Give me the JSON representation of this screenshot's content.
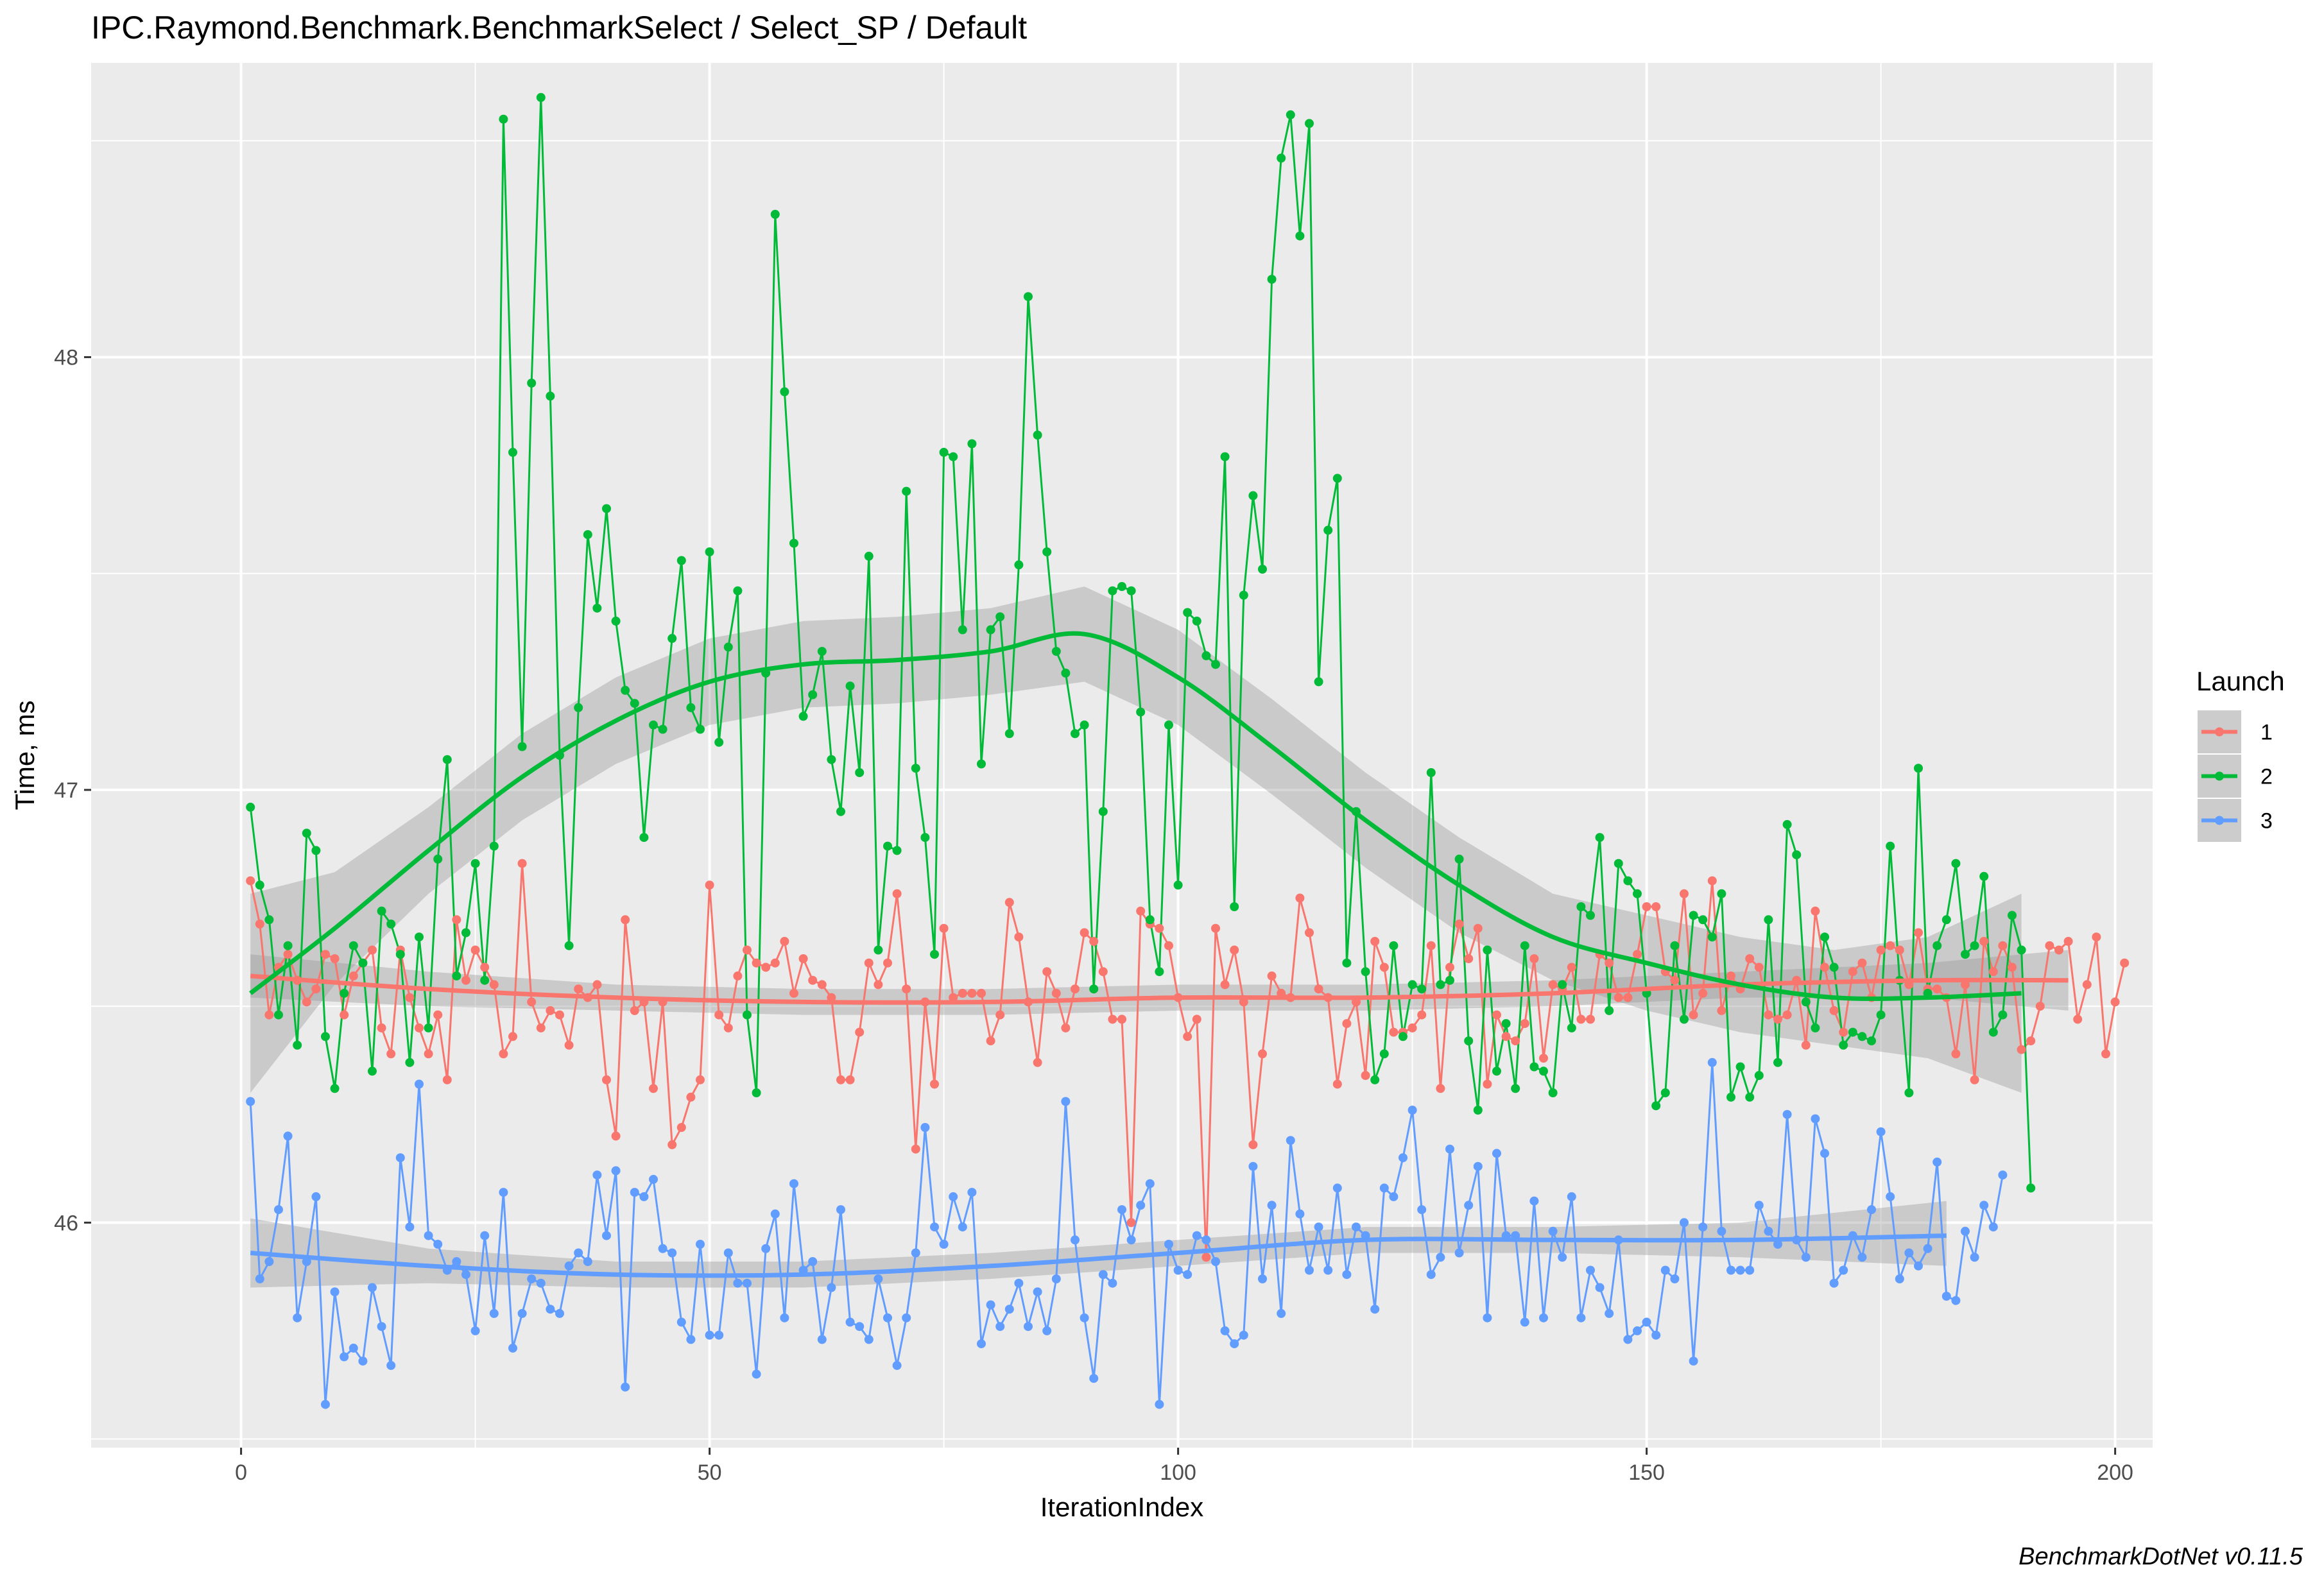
{
  "chart_data": {
    "type": "line",
    "title": "IPC.Raymond.Benchmark.BenchmarkSelect / Select_SP / Default",
    "xlabel": "IterationIndex",
    "ylabel": "Time, ms",
    "caption": "BenchmarkDotNet v0.11.5",
    "xlim": [
      -16,
      204
    ],
    "ylim": [
      45.48,
      48.68
    ],
    "x_major_ticks": [
      0,
      50,
      100,
      150,
      200
    ],
    "x_tick_labels": [
      "0",
      "50",
      "100",
      "150",
      "200"
    ],
    "x_minor_ticks": [
      25,
      75,
      125,
      175
    ],
    "y_major_ticks": [
      46,
      47,
      48
    ],
    "y_tick_labels": [
      "46",
      "47",
      "48"
    ],
    "y_minor_ticks": [
      45.5,
      46.5,
      47.5,
      48.5
    ],
    "grid": true,
    "legend": {
      "title": "Launch",
      "position": "right"
    },
    "series": [
      {
        "name": "1",
        "color": "#F8766D",
        "values": [
          46.79,
          46.69,
          46.48,
          46.59,
          46.62,
          46.56,
          46.51,
          46.54,
          46.62,
          46.61,
          46.48,
          46.57,
          46.6,
          46.63,
          46.45,
          46.39,
          46.63,
          46.52,
          46.45,
          46.39,
          46.48,
          46.33,
          46.7,
          46.56,
          46.63,
          46.59,
          46.55,
          46.39,
          46.43,
          46.83,
          46.51,
          46.45,
          46.49,
          46.48,
          46.41,
          46.54,
          46.52,
          46.55,
          46.33,
          46.2,
          46.7,
          46.49,
          46.51,
          46.31,
          46.51,
          46.18,
          46.22,
          46.29,
          46.33,
          46.78,
          46.48,
          46.45,
          46.57,
          46.63,
          46.6,
          46.59,
          46.6,
          46.65,
          46.53,
          46.61,
          46.56,
          46.55,
          46.52,
          46.33,
          46.33,
          46.44,
          46.6,
          46.55,
          46.6,
          46.76,
          46.54,
          46.17,
          46.51,
          46.32,
          46.68,
          46.52,
          46.53,
          46.53,
          46.53,
          46.42,
          46.48,
          46.74,
          46.66,
          46.51,
          46.37,
          46.58,
          46.53,
          46.45,
          46.54,
          46.67,
          46.65,
          46.58,
          46.47,
          46.47,
          46.0,
          46.72,
          46.69,
          46.68,
          46.64,
          46.52,
          46.43,
          46.47,
          45.92,
          46.68,
          46.55,
          46.63,
          46.51,
          46.18,
          46.39,
          46.57,
          46.53,
          46.52,
          46.75,
          46.67,
          46.54,
          46.52,
          46.32,
          46.46,
          46.51,
          46.34,
          46.65,
          46.59,
          46.44,
          46.44,
          46.45,
          46.48,
          46.64,
          46.31,
          46.59,
          46.69,
          46.61,
          46.68,
          46.32,
          46.48,
          46.43,
          46.42,
          46.46,
          46.61,
          46.38,
          46.55,
          46.54,
          46.59,
          46.47,
          46.47,
          46.62,
          46.6,
          46.52,
          46.52,
          46.62,
          46.73,
          46.73,
          46.58,
          46.56,
          46.76,
          46.48,
          46.53,
          46.79,
          46.49,
          46.57,
          46.54,
          46.61,
          46.59,
          46.48,
          46.47,
          46.48,
          46.56,
          46.41,
          46.72,
          46.59,
          46.49,
          46.44,
          46.58,
          46.6,
          46.52,
          46.63,
          46.64,
          46.63,
          46.55,
          46.67,
          46.54,
          46.54,
          46.52,
          46.39,
          46.55,
          46.33,
          46.65,
          46.58,
          46.64,
          46.59,
          46.4,
          46.42,
          46.5,
          46.64,
          46.63,
          46.65,
          46.47,
          46.55,
          46.66,
          46.39,
          46.51,
          46.6
        ],
        "trend": [
          [
            1,
            46.57
          ],
          [
            20,
            46.54
          ],
          [
            40,
            46.52
          ],
          [
            60,
            46.51
          ],
          [
            80,
            46.51
          ],
          [
            100,
            46.52
          ],
          [
            120,
            46.52
          ],
          [
            140,
            46.53
          ],
          [
            160,
            46.55
          ],
          [
            180,
            46.56
          ],
          [
            195,
            46.56
          ]
        ],
        "band": [
          [
            1,
            46.52,
            46.62
          ],
          [
            20,
            46.5,
            46.58
          ],
          [
            40,
            46.49,
            46.55
          ],
          [
            60,
            46.48,
            46.54
          ],
          [
            80,
            46.48,
            46.54
          ],
          [
            100,
            46.49,
            46.55
          ],
          [
            120,
            46.49,
            46.55
          ],
          [
            140,
            46.5,
            46.56
          ],
          [
            160,
            46.52,
            46.58
          ],
          [
            180,
            46.52,
            46.6
          ],
          [
            195,
            46.49,
            46.63
          ]
        ]
      },
      {
        "name": "2",
        "color": "#00BA38",
        "values": [
          46.96,
          46.78,
          46.7,
          46.48,
          46.64,
          46.41,
          46.9,
          46.86,
          46.43,
          46.31,
          46.53,
          46.64,
          46.6,
          46.35,
          46.72,
          46.69,
          46.62,
          46.37,
          46.66,
          46.45,
          46.84,
          47.07,
          46.57,
          46.67,
          46.83,
          46.56,
          46.87,
          48.55,
          47.78,
          47.1,
          47.94,
          48.6,
          47.91,
          47.08,
          46.64,
          47.19,
          47.59,
          47.42,
          47.65,
          47.39,
          47.23,
          47.2,
          46.89,
          47.15,
          47.14,
          47.35,
          47.53,
          47.19,
          47.14,
          47.55,
          47.11,
          47.33,
          47.46,
          46.48,
          46.3,
          47.27,
          48.33,
          47.92,
          47.57,
          47.17,
          47.22,
          47.32,
          47.07,
          46.95,
          47.24,
          47.04,
          47.54,
          46.63,
          46.87,
          46.86,
          47.69,
          47.05,
          46.89,
          46.62,
          47.78,
          47.77,
          47.37,
          47.8,
          47.06,
          47.37,
          47.4,
          47.13,
          47.52,
          48.14,
          47.82,
          47.55,
          47.32,
          47.27,
          47.13,
          47.15,
          46.54,
          46.95,
          47.46,
          47.47,
          47.46,
          47.18,
          46.7,
          46.58,
          47.15,
          46.78,
          47.41,
          47.39,
          47.31,
          47.29,
          47.77,
          46.73,
          47.45,
          47.68,
          47.51,
          48.18,
          48.46,
          48.56,
          48.28,
          48.54,
          47.25,
          47.6,
          47.72,
          46.6,
          46.95,
          46.58,
          46.33,
          46.39,
          46.64,
          46.43,
          46.55,
          46.54,
          47.04,
          46.55,
          46.56,
          46.84,
          46.42,
          46.26,
          46.63,
          46.35,
          46.46,
          46.31,
          46.64,
          46.36,
          46.35,
          46.3,
          46.55,
          46.45,
          46.73,
          46.71,
          46.89,
          46.49,
          46.83,
          46.79,
          46.76,
          46.53,
          46.27,
          46.3,
          46.64,
          46.47,
          46.71,
          46.7,
          46.66,
          46.76,
          46.29,
          46.36,
          46.29,
          46.34,
          46.7,
          46.37,
          46.92,
          46.85,
          46.51,
          46.45,
          46.66,
          46.59,
          46.41,
          46.44,
          46.43,
          46.42,
          46.48,
          46.87,
          46.56,
          46.3,
          47.05,
          46.53,
          46.64,
          46.7,
          46.83,
          46.62,
          46.64,
          46.8,
          46.44,
          46.48,
          46.71,
          46.63,
          46.08
        ],
        "trend": [
          [
            1,
            46.53
          ],
          [
            10,
            46.68
          ],
          [
            20,
            46.86
          ],
          [
            30,
            47.03
          ],
          [
            40,
            47.16
          ],
          [
            50,
            47.25
          ],
          [
            60,
            47.29
          ],
          [
            70,
            47.3
          ],
          [
            80,
            47.32
          ],
          [
            90,
            47.36
          ],
          [
            100,
            47.26
          ],
          [
            110,
            47.1
          ],
          [
            120,
            46.93
          ],
          [
            130,
            46.78
          ],
          [
            140,
            46.66
          ],
          [
            150,
            46.6
          ],
          [
            160,
            46.55
          ],
          [
            170,
            46.52
          ],
          [
            180,
            46.52
          ],
          [
            190,
            46.53
          ]
        ],
        "band": [
          [
            1,
            46.3,
            46.76
          ],
          [
            10,
            46.55,
            46.81
          ],
          [
            20,
            46.76,
            46.96
          ],
          [
            30,
            46.93,
            47.13
          ],
          [
            40,
            47.06,
            47.26
          ],
          [
            50,
            47.15,
            47.35
          ],
          [
            60,
            47.19,
            47.39
          ],
          [
            70,
            47.2,
            47.4
          ],
          [
            80,
            47.22,
            47.42
          ],
          [
            90,
            47.25,
            47.47
          ],
          [
            100,
            47.15,
            47.37
          ],
          [
            110,
            46.99,
            47.21
          ],
          [
            120,
            46.82,
            47.04
          ],
          [
            130,
            46.67,
            46.89
          ],
          [
            140,
            46.56,
            46.76
          ],
          [
            150,
            46.49,
            46.71
          ],
          [
            160,
            46.44,
            46.66
          ],
          [
            170,
            46.41,
            46.63
          ],
          [
            180,
            46.38,
            46.66
          ],
          [
            190,
            46.3,
            46.76
          ]
        ]
      },
      {
        "name": "3",
        "color": "#619CFF",
        "values": [
          46.28,
          45.87,
          45.91,
          46.03,
          46.2,
          45.78,
          45.91,
          46.06,
          45.58,
          45.84,
          45.69,
          45.71,
          45.68,
          45.85,
          45.76,
          45.67,
          46.15,
          45.99,
          46.32,
          45.97,
          45.95,
          45.89,
          45.91,
          45.88,
          45.75,
          45.97,
          45.79,
          46.07,
          45.71,
          45.79,
          45.87,
          45.86,
          45.8,
          45.79,
          45.9,
          45.93,
          45.91,
          46.11,
          45.97,
          46.12,
          45.62,
          46.07,
          46.06,
          46.1,
          45.94,
          45.93,
          45.77,
          45.73,
          45.95,
          45.74,
          45.74,
          45.93,
          45.86,
          45.86,
          45.65,
          45.94,
          46.02,
          45.78,
          46.09,
          45.89,
          45.91,
          45.73,
          45.85,
          46.03,
          45.77,
          45.76,
          45.73,
          45.87,
          45.78,
          45.67,
          45.78,
          45.93,
          46.22,
          45.99,
          45.95,
          46.06,
          45.99,
          46.07,
          45.72,
          45.81,
          45.76,
          45.8,
          45.86,
          45.76,
          45.84,
          45.75,
          45.87,
          46.28,
          45.96,
          45.78,
          45.64,
          45.88,
          45.86,
          46.03,
          45.96,
          46.04,
          46.09,
          45.58,
          45.95,
          45.89,
          45.88,
          45.97,
          45.96,
          45.91,
          45.75,
          45.72,
          45.74,
          46.13,
          45.87,
          46.04,
          45.79,
          46.19,
          46.02,
          45.89,
          45.99,
          45.89,
          46.08,
          45.88,
          45.99,
          45.97,
          45.8,
          46.08,
          46.06,
          46.15,
          46.26,
          46.03,
          45.88,
          45.92,
          46.17,
          45.93,
          46.04,
          46.13,
          45.78,
          46.16,
          45.97,
          45.97,
          45.77,
          46.05,
          45.78,
          45.98,
          45.92,
          46.06,
          45.78,
          45.89,
          45.85,
          45.79,
          45.96,
          45.73,
          45.75,
          45.77,
          45.74,
          45.89,
          45.87,
          46.0,
          45.68,
          45.99,
          46.37,
          45.98,
          45.89,
          45.89,
          45.89,
          46.04,
          45.98,
          45.95,
          46.25,
          45.96,
          45.92,
          46.24,
          46.16,
          45.86,
          45.89,
          45.97,
          45.92,
          46.03,
          46.21,
          46.06,
          45.87,
          45.93,
          45.9,
          45.94,
          46.14,
          45.83,
          45.82,
          45.98,
          45.92,
          46.04,
          45.99,
          46.11
        ],
        "trend": [
          [
            1,
            45.93
          ],
          [
            20,
            45.9
          ],
          [
            40,
            45.88
          ],
          [
            60,
            45.88
          ],
          [
            80,
            45.9
          ],
          [
            100,
            45.93
          ],
          [
            120,
            45.96
          ],
          [
            140,
            45.96
          ],
          [
            160,
            45.96
          ],
          [
            182,
            45.97
          ]
        ],
        "band": [
          [
            1,
            45.85,
            46.01
          ],
          [
            20,
            45.86,
            45.94
          ],
          [
            40,
            45.85,
            45.91
          ],
          [
            60,
            45.85,
            45.91
          ],
          [
            80,
            45.87,
            45.93
          ],
          [
            100,
            45.9,
            45.96
          ],
          [
            120,
            45.93,
            45.99
          ],
          [
            140,
            45.93,
            45.99
          ],
          [
            160,
            45.92,
            46.0
          ],
          [
            182,
            45.9,
            46.05
          ]
        ]
      }
    ]
  }
}
